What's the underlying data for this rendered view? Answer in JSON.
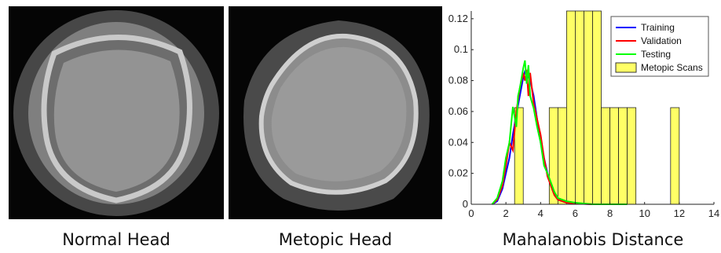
{
  "captions": {
    "left": "Normal Head",
    "middle": "Metopic Head",
    "right": "Mahalanobis Distance"
  },
  "images": {
    "left_icon": "ct-scan-normal-head",
    "middle_icon": "ct-scan-metopic-head"
  },
  "chart_data": {
    "type": "line",
    "xlim": [
      0,
      14
    ],
    "ylim": [
      0,
      0.125
    ],
    "x_ticks": [
      "0",
      "2",
      "4",
      "6",
      "8",
      "10",
      "12",
      "14"
    ],
    "y_ticks": [
      "0",
      "0.02",
      "0.04",
      "0.06",
      "0.08",
      "0.1",
      "0.12"
    ],
    "bars": {
      "name": "Metopic Scans",
      "color": "#ffff66",
      "bin_width": 0.5,
      "bins": [
        {
          "x0": 2.5,
          "value": 0.0625
        },
        {
          "x0": 3.0,
          "value": 0.0
        },
        {
          "x0": 4.5,
          "value": 0.0625
        },
        {
          "x0": 5.0,
          "value": 0.0625
        },
        {
          "x0": 5.5,
          "value": 0.125
        },
        {
          "x0": 6.0,
          "value": 0.125
        },
        {
          "x0": 6.5,
          "value": 0.125
        },
        {
          "x0": 7.0,
          "value": 0.125
        },
        {
          "x0": 7.5,
          "value": 0.0625
        },
        {
          "x0": 8.0,
          "value": 0.0625
        },
        {
          "x0": 8.5,
          "value": 0.0625
        },
        {
          "x0": 9.0,
          "value": 0.0625
        },
        {
          "x0": 11.5,
          "value": 0.0625
        }
      ]
    },
    "series": [
      {
        "name": "Training",
        "color": "#0000ff",
        "x": [
          1.2,
          1.5,
          1.8,
          2.0,
          2.2,
          2.4,
          2.6,
          2.8,
          3.0,
          3.1,
          3.2,
          3.4,
          3.6,
          3.8,
          4.0,
          4.2,
          4.4,
          4.6,
          4.8,
          5.0,
          5.5,
          6.0,
          7.0,
          9.0
        ],
        "y": [
          0,
          0.002,
          0.01,
          0.02,
          0.03,
          0.045,
          0.058,
          0.07,
          0.082,
          0.086,
          0.085,
          0.08,
          0.07,
          0.055,
          0.04,
          0.03,
          0.02,
          0.012,
          0.006,
          0.003,
          0.001,
          0.0005,
          0,
          0
        ]
      },
      {
        "name": "Validation",
        "color": "#ff0000",
        "x": [
          1.2,
          1.5,
          1.8,
          2.0,
          2.2,
          2.4,
          2.6,
          2.8,
          3.0,
          3.1,
          3.2,
          3.3,
          3.4,
          3.6,
          3.8,
          4.0,
          4.2,
          4.4,
          4.6,
          4.8,
          5.0,
          5.5,
          6.0,
          7.0,
          9.0
        ],
        "y": [
          0,
          0.003,
          0.012,
          0.025,
          0.04,
          0.035,
          0.06,
          0.075,
          0.085,
          0.08,
          0.087,
          0.07,
          0.085,
          0.065,
          0.055,
          0.045,
          0.03,
          0.018,
          0.012,
          0.006,
          0.003,
          0.001,
          0.0005,
          0,
          0
        ]
      },
      {
        "name": "Testing",
        "color": "#00ff00",
        "x": [
          1.2,
          1.5,
          1.8,
          2.0,
          2.2,
          2.4,
          2.6,
          2.7,
          2.8,
          3.0,
          3.1,
          3.2,
          3.3,
          3.4,
          3.6,
          3.8,
          4.0,
          4.2,
          4.4,
          4.6,
          4.8,
          5.0,
          5.5,
          6.0,
          7.0,
          9.0
        ],
        "y": [
          0,
          0.004,
          0.015,
          0.03,
          0.04,
          0.063,
          0.05,
          0.07,
          0.075,
          0.088,
          0.093,
          0.078,
          0.09,
          0.07,
          0.062,
          0.05,
          0.04,
          0.025,
          0.02,
          0.014,
          0.008,
          0.004,
          0.002,
          0.001,
          0,
          0
        ]
      }
    ]
  }
}
